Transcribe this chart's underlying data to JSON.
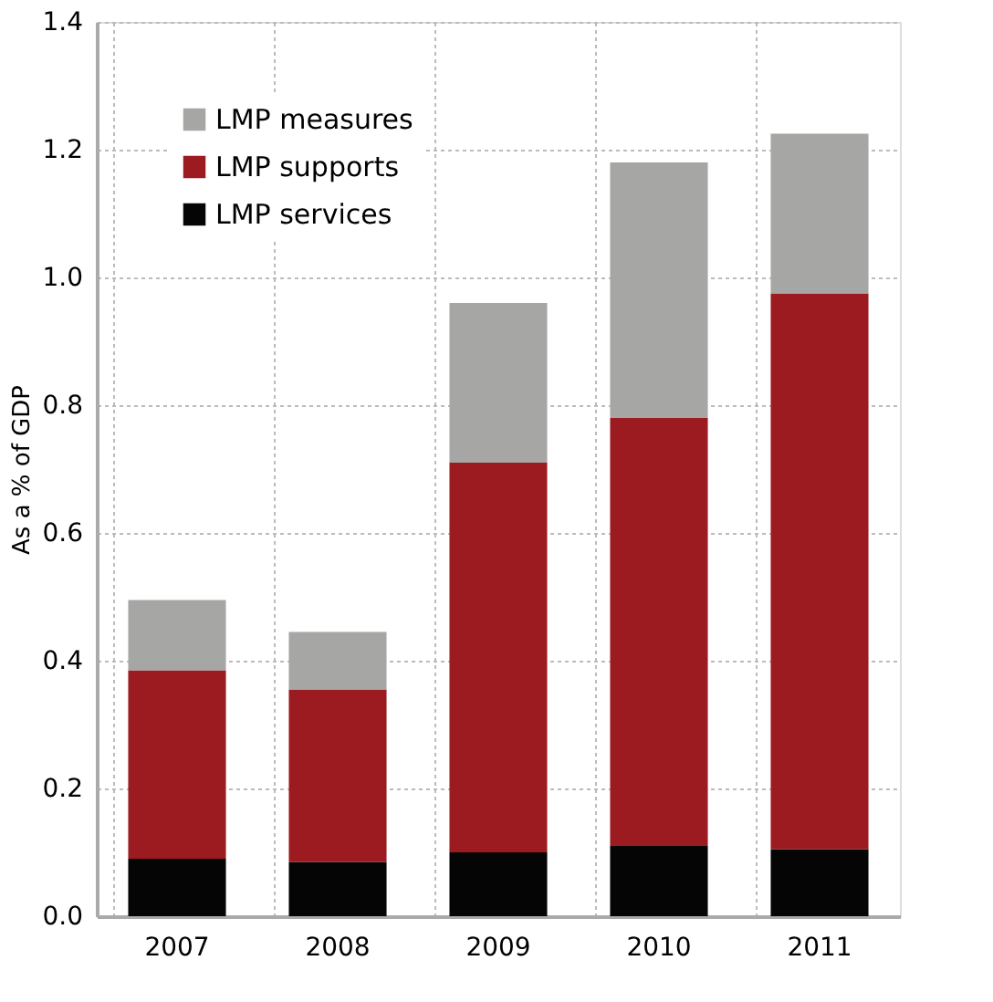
{
  "chart_data": {
    "type": "bar",
    "stacked": true,
    "ylabel": "As a % of GDP",
    "categories": [
      "2007",
      "2008",
      "2009",
      "2010",
      "2011"
    ],
    "series": [
      {
        "name": "LMP services",
        "color": "#050505",
        "values": [
          0.09,
          0.085,
          0.1,
          0.11,
          0.105
        ]
      },
      {
        "name": "LMP supports",
        "color": "#9b1b20",
        "values": [
          0.295,
          0.27,
          0.61,
          0.67,
          0.87
        ]
      },
      {
        "name": "LMP measures",
        "color": "#a6a6a5",
        "values": [
          0.11,
          0.09,
          0.25,
          0.4,
          0.25
        ]
      }
    ],
    "ylim": [
      0,
      1.4
    ],
    "yticks": [
      {
        "value": 0,
        "label": "0.0"
      },
      0.2,
      0.4,
      0.6,
      0.8,
      {
        "value": 1,
        "label": "1.0"
      },
      1.2,
      1.4
    ],
    "grid": true,
    "legend": "top left"
  }
}
